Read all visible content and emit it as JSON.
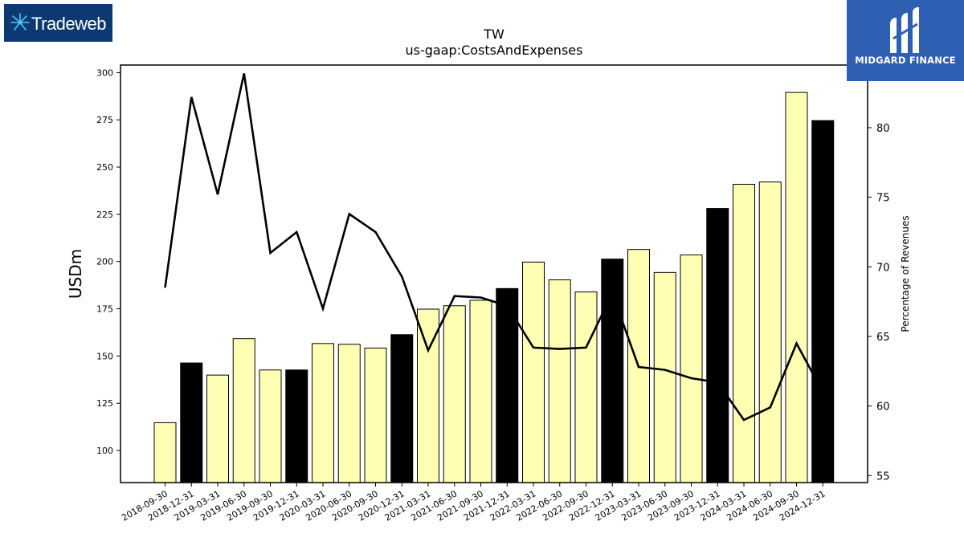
{
  "logos": {
    "left_text": "Tradeweb",
    "right_text": "MIDGARD FINANCE"
  },
  "colors": {
    "bar_fill": "#ffffb3",
    "bar_highlight": "#000000",
    "line": "#000000",
    "left_logo_bg": "#0b3a72",
    "right_logo_bg": "#2f5fb3"
  },
  "chart_data": {
    "type": "bar",
    "title": "TW",
    "subtitle": "us-gaap:CostsAndExpenses",
    "ylabel": "USDm",
    "y2label": "Percentage of Revenues",
    "ylim": [
      83,
      304
    ],
    "y2lim": [
      54.5,
      84.5
    ],
    "yticks": [
      100,
      125,
      150,
      175,
      200,
      225,
      250,
      275,
      300
    ],
    "y2ticks": [
      55,
      60,
      65,
      70,
      75,
      80
    ],
    "grid": false,
    "categories": [
      "2018-09-30",
      "2018-12-31",
      "2019-03-31",
      "2019-06-30",
      "2019-09-30",
      "2019-12-31",
      "2020-03-31",
      "2020-06-30",
      "2020-09-30",
      "2020-12-31",
      "2021-03-31",
      "2021-06-30",
      "2021-09-30",
      "2021-12-31",
      "2022-03-31",
      "2022-06-30",
      "2022-09-30",
      "2022-12-31",
      "2023-03-31",
      "2023-06-30",
      "2023-09-30",
      "2023-12-31",
      "2024-03-31",
      "2024-06-30",
      "2024-09-30",
      "2024-12-31"
    ],
    "series": [
      {
        "kind": "bar",
        "axis": "left",
        "values": [
          114.7,
          146.3,
          139.9,
          159.2,
          142.6,
          142.6,
          156.6,
          156.2,
          154.2,
          161.3,
          174.8,
          176.6,
          179.5,
          185.7,
          199.7,
          190.3,
          183.9,
          201.3,
          206.4,
          194.2,
          203.5,
          228.1,
          240.9,
          242.1,
          289.5,
          274.6
        ],
        "highlighted": [
          false,
          true,
          false,
          false,
          false,
          true,
          false,
          false,
          false,
          true,
          false,
          false,
          false,
          true,
          false,
          false,
          false,
          true,
          false,
          false,
          false,
          true,
          false,
          false,
          false,
          true
        ]
      },
      {
        "kind": "line",
        "axis": "right",
        "values": [
          68.5,
          82.2,
          75.2,
          83.9,
          71.0,
          72.5,
          67.0,
          73.8,
          72.5,
          69.3,
          64.0,
          67.9,
          67.8,
          67.2,
          64.2,
          64.1,
          64.2,
          68.1,
          62.8,
          62.6,
          62.0,
          61.7,
          59.0,
          59.9,
          64.5,
          61.0
        ]
      }
    ]
  }
}
